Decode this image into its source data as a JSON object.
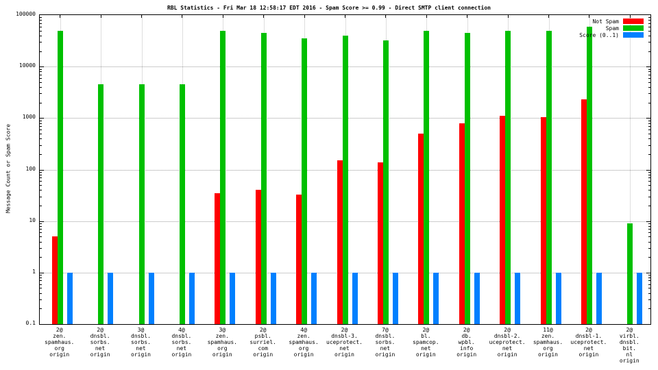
{
  "chart_data": {
    "type": "bar",
    "title": "RBL Statistics - Fri Mar 18 12:58:17 EDT 2016 - Spam Score >= 0.99 - Direct SMTP client connection",
    "ylabel": "Message Count or Spam Score",
    "xlabel": "",
    "yscale": "log",
    "ylim": [
      0.1,
      100000
    ],
    "yticks": [
      "100000",
      "10000",
      "1000",
      "100",
      "10",
      "1",
      "0.1"
    ],
    "grid": true,
    "legend_position": "top-right",
    "categories": [
      [
        "2@",
        "zen.",
        "spamhaus.",
        "org",
        "origin"
      ],
      [
        "2@",
        "dnsbl.",
        "sorbs.",
        "net",
        "origin"
      ],
      [
        "3@",
        "dnsbl.",
        "sorbs.",
        "net",
        "origin"
      ],
      [
        "4@",
        "dnsbl.",
        "sorbs.",
        "net",
        "origin"
      ],
      [
        "3@",
        "zen.",
        "spamhaus.",
        "org",
        "origin"
      ],
      [
        "2@",
        "psbl.",
        "surriel.",
        "com",
        "origin"
      ],
      [
        "4@",
        "zen.",
        "spamhaus.",
        "org",
        "origin"
      ],
      [
        "2@",
        "dnsbl-3.",
        "uceprotect.",
        "net",
        "origin"
      ],
      [
        "7@",
        "dnsbl.",
        "sorbs.",
        "net",
        "origin"
      ],
      [
        "2@",
        "bl.",
        "spamcop.",
        "net",
        "origin"
      ],
      [
        "2@",
        "db.",
        "wpbl.",
        "info",
        "origin"
      ],
      [
        "2@",
        "dnsbl-2.",
        "uceprotect.",
        "net",
        "origin"
      ],
      [
        "11@",
        "zen.",
        "spamhaus.",
        "org",
        "origin"
      ],
      [
        "2@",
        "dnsbl-1.",
        "uceprotect.",
        "net",
        "origin"
      ],
      [
        "2@",
        "virbl.",
        "dnsbl.",
        "bit.",
        "nl",
        "origin"
      ]
    ],
    "series": [
      {
        "name": "Not Spam",
        "color": "#ff0000",
        "values": [
          5,
          null,
          null,
          null,
          35,
          40,
          33,
          150,
          140,
          500,
          800,
          1100,
          1050,
          2300,
          null
        ]
      },
      {
        "name": "Spam",
        "color": "#00c000",
        "values": [
          50000,
          4500,
          4500,
          4500,
          50000,
          45000,
          35000,
          40000,
          32000,
          50000,
          45000,
          50000,
          50000,
          60000,
          9
        ]
      },
      {
        "name": "Score (0..1)",
        "color": "#0080ff",
        "values": [
          1,
          1,
          1,
          1,
          1,
          1,
          1,
          1,
          1,
          1,
          1,
          1,
          1,
          1,
          1
        ]
      }
    ]
  }
}
